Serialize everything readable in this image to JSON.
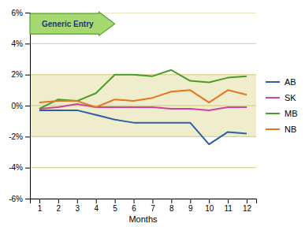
{
  "chart_data": {
    "type": "line",
    "x_label": "Months",
    "x": [
      1,
      2,
      3,
      4,
      5,
      6,
      7,
      8,
      9,
      10,
      11,
      12
    ],
    "series": [
      {
        "name": "AB",
        "color": "#2d5fa6",
        "values": [
          -0.3,
          -0.3,
          -0.3,
          -0.6,
          -0.9,
          -1.1,
          -1.1,
          -1.1,
          -1.1,
          -2.5,
          -1.7,
          -1.8
        ]
      },
      {
        "name": "SK",
        "color": "#c944a0",
        "values": [
          -0.2,
          -0.1,
          0.1,
          -0.1,
          -0.1,
          -0.1,
          -0.1,
          -0.2,
          -0.2,
          -0.3,
          -0.1,
          -0.1
        ]
      },
      {
        "name": "MB",
        "color": "#4c9a2a",
        "values": [
          -0.2,
          0.4,
          0.3,
          0.8,
          2.0,
          2.0,
          1.9,
          2.3,
          1.6,
          1.5,
          1.8,
          1.9
        ]
      },
      {
        "name": "NB",
        "color": "#e07820",
        "values": [
          0.2,
          0.3,
          0.3,
          -0.1,
          0.4,
          0.3,
          0.5,
          0.9,
          1.0,
          0.2,
          1.0,
          0.7
        ]
      }
    ],
    "xlim": [
      0.5,
      12.5
    ],
    "xticks": [
      1,
      2,
      3,
      4,
      5,
      6,
      7,
      8,
      9,
      10,
      11,
      12
    ],
    "ylim": [
      -6,
      6
    ],
    "yticks": [
      {
        "value": -6,
        "label": "-6%"
      },
      {
        "value": -4,
        "label": "-4%"
      },
      {
        "value": -2,
        "label": "-2%"
      },
      {
        "value": 0,
        "label": "0%"
      },
      {
        "value": 2,
        "label": "2%"
      },
      {
        "value": 4,
        "label": "4%"
      },
      {
        "value": 6,
        "label": "6%"
      }
    ],
    "band": [
      -2.0,
      2.0
    ],
    "annotations": [
      "Generic Entry"
    ],
    "grid": true,
    "legend": "right"
  }
}
